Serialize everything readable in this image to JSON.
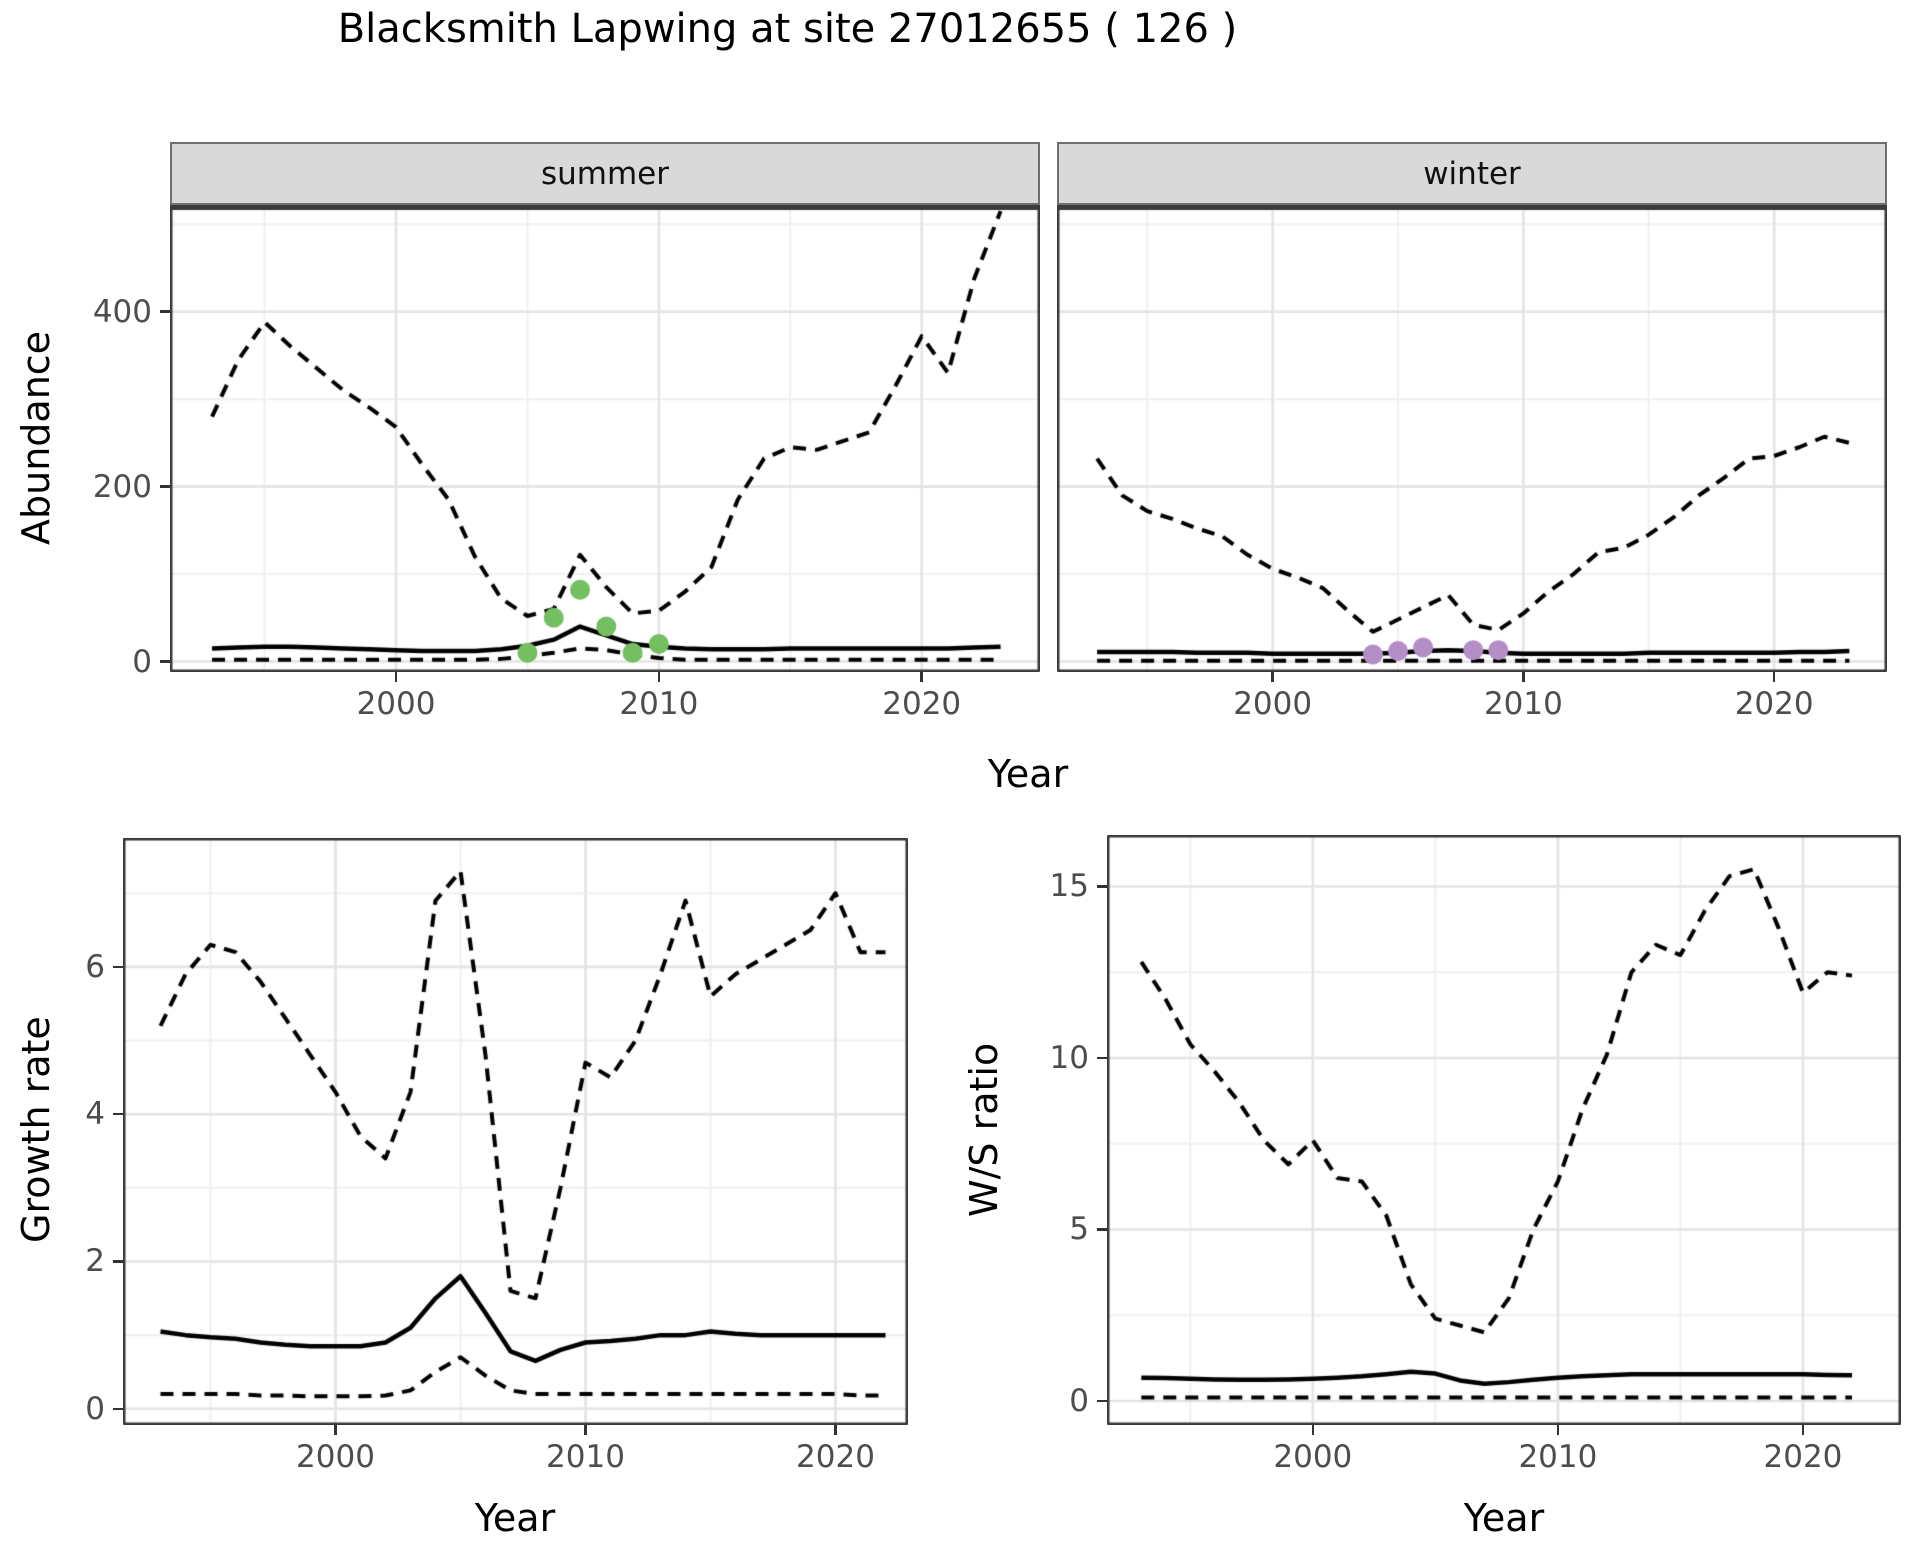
{
  "title": "Blacksmith Lapwing at site 27012655 ( 126 )",
  "axis_titles": {
    "abundance": "Abundance",
    "growth_rate": "Growth rate",
    "ws_ratio": "W/S ratio",
    "year": "Year"
  },
  "colors": {
    "line": "#000000",
    "summer_dot": "#74BF5F",
    "winter_dot": "#B48EC7",
    "grid_major": "#e4e4e4",
    "grid_minor": "#f0f0f0",
    "panel_border": "#3a3a3a",
    "strip_bg": "#d9d9d9",
    "axis_text": "#4d4d4d"
  },
  "chart_data": [
    {
      "id": "abundance_summer",
      "type": "line",
      "facet_label": "summer",
      "ylabel": "Abundance",
      "xlabel": "Year",
      "xlim": [
        1991.4,
        2024.5
      ],
      "ylim": [
        -12,
        522
      ],
      "xticks": [
        2000,
        2010,
        2020
      ],
      "xticks_minor": [
        1995,
        2005,
        2015
      ],
      "yticks": [
        0,
        200,
        400
      ],
      "yticks_minor": [
        100,
        300,
        500
      ],
      "grid": true,
      "legend": "none",
      "x": [
        1993,
        1994,
        1995,
        1996,
        1997,
        1998,
        1999,
        2000,
        2001,
        2002,
        2003,
        2004,
        2005,
        2006,
        2007,
        2008,
        2009,
        2010,
        2011,
        2012,
        2013,
        2014,
        2015,
        2016,
        2017,
        2018,
        2019,
        2020,
        2021,
        2022,
        2023
      ],
      "series": [
        {
          "name": "upper 95% CI",
          "style": "dashed",
          "values": [
            280,
            345,
            388,
            360,
            335,
            310,
            290,
            268,
            225,
            185,
            120,
            72,
            52,
            60,
            122,
            85,
            55,
            58,
            80,
            108,
            185,
            232,
            245,
            242,
            252,
            262,
            315,
            372,
            330,
            438,
            515
          ]
        },
        {
          "name": "median",
          "style": "solid",
          "values": [
            15,
            16,
            17,
            17,
            16,
            15,
            14,
            13,
            12,
            12,
            12,
            14,
            18,
            25,
            40,
            30,
            20,
            17,
            15,
            14,
            14,
            14,
            15,
            15,
            15,
            15,
            15,
            15,
            15,
            16,
            17
          ]
        },
        {
          "name": "lower 95% CI",
          "style": "dashed",
          "values": [
            2,
            2,
            2,
            2,
            2,
            2,
            2,
            2,
            2,
            2,
            2,
            3,
            6,
            10,
            15,
            13,
            8,
            4,
            2,
            2,
            2,
            2,
            2,
            2,
            2,
            2,
            2,
            2,
            2,
            2,
            2
          ]
        }
      ],
      "points": {
        "name": "summer observed counts",
        "color": "#74BF5F",
        "x": [
          2005,
          2006,
          2007,
          2008,
          2009,
          2010
        ],
        "y": [
          10,
          50,
          82,
          40,
          10,
          20
        ]
      }
    },
    {
      "id": "abundance_winter",
      "type": "line",
      "facet_label": "winter",
      "ylabel": "Abundance",
      "xlabel": "Year",
      "xlim": [
        1991.4,
        2024.5
      ],
      "ylim": [
        -12,
        522
      ],
      "xticks": [
        2000,
        2010,
        2020
      ],
      "xticks_minor": [
        1995,
        2005,
        2015
      ],
      "yticks": [
        0,
        200,
        400
      ],
      "yticks_minor": [
        100,
        300,
        500
      ],
      "grid": true,
      "legend": "none",
      "x": [
        1993,
        1994,
        1995,
        1996,
        1997,
        1998,
        1999,
        2000,
        2001,
        2002,
        2003,
        2004,
        2005,
        2006,
        2007,
        2008,
        2009,
        2010,
        2011,
        2012,
        2013,
        2014,
        2015,
        2016,
        2017,
        2018,
        2019,
        2020,
        2021,
        2022,
        2023
      ],
      "series": [
        {
          "name": "upper 95% CI",
          "style": "dashed",
          "values": [
            232,
            190,
            172,
            163,
            152,
            143,
            122,
            106,
            96,
            84,
            58,
            34,
            48,
            62,
            76,
            42,
            36,
            55,
            80,
            100,
            125,
            130,
            145,
            165,
            190,
            210,
            232,
            235,
            245,
            257,
            250
          ]
        },
        {
          "name": "median",
          "style": "solid",
          "values": [
            11,
            11,
            11,
            11,
            10,
            10,
            10,
            9,
            9,
            9,
            9,
            9,
            10,
            12,
            13,
            12,
            10,
            9,
            9,
            9,
            9,
            9,
            10,
            10,
            10,
            10,
            10,
            10,
            11,
            11,
            12
          ]
        },
        {
          "name": "lower 95% CI",
          "style": "dashed",
          "values": [
            1,
            1,
            1,
            1,
            1,
            1,
            1,
            1,
            1,
            1,
            1,
            1,
            1,
            1,
            1,
            1,
            1,
            1,
            1,
            1,
            1,
            1,
            1,
            1,
            1,
            1,
            1,
            1,
            1,
            1,
            1
          ]
        }
      ],
      "points": {
        "name": "winter observed counts",
        "color": "#B48EC7",
        "x": [
          2004,
          2005,
          2006,
          2008,
          2009
        ],
        "y": [
          8,
          12,
          16,
          13,
          13
        ]
      }
    },
    {
      "id": "growth_rate",
      "type": "line",
      "facet_label": "",
      "ylabel": "Growth rate",
      "xlabel": "Year",
      "xlim": [
        1991.5,
        2022.9
      ],
      "ylim": [
        -0.22,
        7.75
      ],
      "xticks": [
        2000,
        2010,
        2020
      ],
      "xticks_minor": [
        1995,
        2005,
        2015
      ],
      "yticks": [
        0,
        2,
        4,
        6
      ],
      "yticks_minor": [
        1,
        3,
        5,
        7
      ],
      "grid": true,
      "legend": "none",
      "x": [
        1993,
        1994,
        1995,
        1996,
        1997,
        1998,
        1999,
        2000,
        2001,
        2002,
        2003,
        2004,
        2005,
        2006,
        2007,
        2008,
        2009,
        2010,
        2011,
        2012,
        2013,
        2014,
        2015,
        2016,
        2017,
        2018,
        2019,
        2020,
        2021,
        2022
      ],
      "series": [
        {
          "name": "upper 95% CI",
          "style": "dashed",
          "values": [
            5.2,
            5.9,
            6.3,
            6.2,
            5.8,
            5.3,
            4.8,
            4.3,
            3.7,
            3.4,
            4.3,
            6.9,
            7.3,
            4.8,
            1.6,
            1.5,
            3.0,
            4.7,
            4.5,
            5.0,
            5.9,
            6.9,
            5.6,
            5.9,
            6.1,
            6.3,
            6.5,
            7.0,
            6.2,
            6.2
          ]
        },
        {
          "name": "median",
          "style": "solid",
          "values": [
            1.05,
            1.0,
            0.97,
            0.95,
            0.9,
            0.87,
            0.85,
            0.85,
            0.85,
            0.9,
            1.1,
            1.5,
            1.8,
            1.3,
            0.78,
            0.65,
            0.8,
            0.9,
            0.92,
            0.95,
            1.0,
            1.0,
            1.05,
            1.02,
            1.0,
            1.0,
            1.0,
            1.0,
            1.0,
            1.0
          ]
        },
        {
          "name": "lower 95% CI",
          "style": "dashed",
          "values": [
            0.2,
            0.2,
            0.2,
            0.2,
            0.18,
            0.18,
            0.17,
            0.17,
            0.17,
            0.18,
            0.25,
            0.5,
            0.7,
            0.45,
            0.25,
            0.2,
            0.2,
            0.2,
            0.2,
            0.2,
            0.2,
            0.2,
            0.2,
            0.2,
            0.2,
            0.2,
            0.2,
            0.2,
            0.18,
            0.18
          ]
        }
      ]
    },
    {
      "id": "ws_ratio",
      "type": "line",
      "facet_label": "",
      "ylabel": "W/S ratio",
      "xlabel": "Year",
      "xlim": [
        1991.6,
        2024.0
      ],
      "ylim": [
        -0.7,
        16.5
      ],
      "xticks": [
        2000,
        2010,
        2020
      ],
      "xticks_minor": [
        1995,
        2005,
        2015
      ],
      "yticks": [
        0,
        5,
        10,
        15
      ],
      "yticks_minor": [
        2.5,
        7.5,
        12.5
      ],
      "grid": true,
      "legend": "none",
      "x": [
        1993,
        1994,
        1995,
        1996,
        1997,
        1998,
        1999,
        2000,
        2001,
        2002,
        2003,
        2004,
        2005,
        2006,
        2007,
        2008,
        2009,
        2010,
        2011,
        2012,
        2013,
        2014,
        2015,
        2016,
        2017,
        2018,
        2019,
        2020,
        2021,
        2022
      ],
      "series": [
        {
          "name": "upper 95% CI",
          "style": "dashed",
          "values": [
            12.8,
            11.7,
            10.4,
            9.6,
            8.7,
            7.6,
            6.9,
            7.6,
            6.5,
            6.4,
            5.4,
            3.4,
            2.4,
            2.2,
            2.0,
            3.0,
            5.0,
            6.4,
            8.5,
            10.1,
            12.5,
            13.3,
            13.0,
            14.3,
            15.3,
            15.5,
            13.8,
            11.9,
            12.5,
            12.4
          ]
        },
        {
          "name": "median",
          "style": "solid",
          "values": [
            0.68,
            0.67,
            0.65,
            0.63,
            0.62,
            0.62,
            0.63,
            0.65,
            0.68,
            0.72,
            0.78,
            0.85,
            0.8,
            0.6,
            0.5,
            0.55,
            0.62,
            0.68,
            0.72,
            0.75,
            0.78,
            0.78,
            0.78,
            0.78,
            0.78,
            0.78,
            0.78,
            0.78,
            0.76,
            0.75
          ]
        },
        {
          "name": "lower 95% CI",
          "style": "dashed",
          "values": [
            0.1,
            0.1,
            0.1,
            0.1,
            0.1,
            0.1,
            0.1,
            0.1,
            0.1,
            0.1,
            0.1,
            0.1,
            0.1,
            0.1,
            0.1,
            0.1,
            0.1,
            0.1,
            0.1,
            0.1,
            0.1,
            0.1,
            0.1,
            0.1,
            0.1,
            0.1,
            0.1,
            0.1,
            0.1,
            0.1
          ]
        }
      ]
    }
  ]
}
